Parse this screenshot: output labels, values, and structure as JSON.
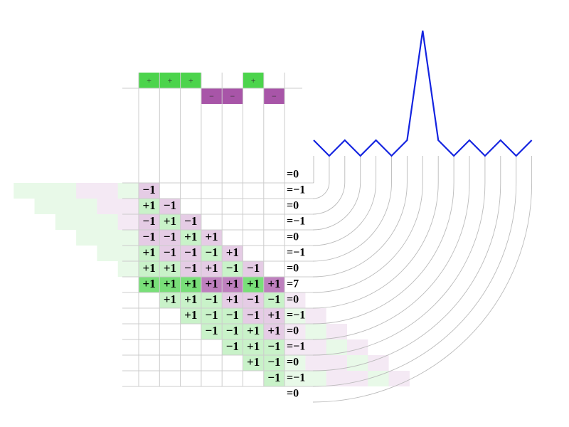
{
  "code": [
    "+",
    "+",
    "+",
    "−",
    "−",
    "+",
    "−"
  ],
  "code_values": [
    1,
    1,
    1,
    -1,
    -1,
    1,
    -1
  ],
  "positive_color": "#4cd44c",
  "negative_color": "#a855a8",
  "line_color": "#1424e0",
  "products": [
    [
      null,
      null,
      null,
      null,
      null,
      null,
      null
    ],
    [
      "−1",
      null,
      null,
      null,
      null,
      null,
      null
    ],
    [
      "+1",
      "−1",
      null,
      null,
      null,
      null,
      null
    ],
    [
      "−1",
      "+1",
      "−1",
      null,
      null,
      null,
      null
    ],
    [
      "−1",
      "−1",
      "+1",
      "+1",
      null,
      null,
      null
    ],
    [
      "+1",
      "−1",
      "−1",
      "−1",
      "+1",
      null,
      null
    ],
    [
      "+1",
      "+1",
      "−1",
      "+1",
      "−1",
      "−1",
      null
    ],
    [
      "+1",
      "+1",
      "+1",
      "+1",
      "+1",
      "+1",
      "+1"
    ],
    [
      null,
      "+1",
      "+1",
      "−1",
      "+1",
      "−1",
      "−1"
    ],
    [
      null,
      null,
      "+1",
      "−1",
      "−1",
      "−1",
      "+1"
    ],
    [
      null,
      null,
      null,
      "−1",
      "−1",
      "+1",
      "+1"
    ],
    [
      null,
      null,
      null,
      null,
      "−1",
      "+1",
      "−1"
    ],
    [
      null,
      null,
      null,
      null,
      null,
      "+1",
      "−1"
    ],
    [
      null,
      null,
      null,
      null,
      null,
      null,
      "−1"
    ],
    [
      null,
      null,
      null,
      null,
      null,
      null,
      null
    ]
  ],
  "results": [
    "=0",
    "=−1",
    "=0",
    "=−1",
    "=0",
    "=−1",
    "=0",
    "=7",
    "=0",
    "=−1",
    "=0",
    "=−1",
    "=0",
    "=−1",
    "=0"
  ],
  "autocorrelation": [
    0,
    -1,
    0,
    -1,
    0,
    -1,
    0,
    7,
    0,
    -1,
    0,
    -1,
    0,
    -1,
    0
  ]
}
